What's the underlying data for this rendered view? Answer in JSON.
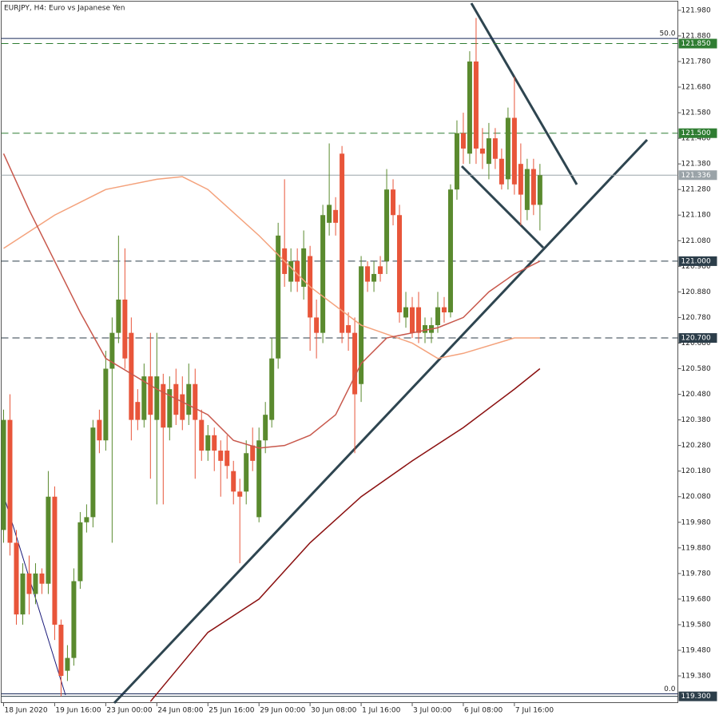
{
  "chart_data": {
    "type": "candlestick",
    "title": "EURJPY, H4:  Euro vs Japanese Yen",
    "ylim": [
      119.274,
      122.014
    ],
    "xlim": [
      -0.375,
      105.6
    ],
    "bull_color": "#5a8a2e",
    "bear_color": "#e8553a",
    "open": [
      119.95,
      120.38,
      119.9,
      119.62,
      119.78,
      119.7,
      119.78,
      119.74,
      120.08,
      119.58,
      119.4,
      119.45,
      119.75,
      119.98,
      120.0,
      120.38,
      120.3,
      120.58,
      120.72,
      120.85,
      120.72,
      120.45,
      120.38,
      120.55,
      120.38,
      120.52,
      120.35,
      120.52,
      120.48,
      120.4,
      120.52,
      120.38,
      120.26,
      120.32,
      120.26,
      120.26,
      120.18,
      120.1,
      120.1,
      120.28,
      120.0,
      120.3,
      120.38,
      120.62,
      121.05,
      120.92,
      121.0,
      120.9,
      121.02,
      120.78,
      120.72,
      121.15,
      121.2,
      121.42,
      120.75,
      120.72,
      120.52,
      120.98,
      120.92,
      120.98,
      121.0,
      121.28,
      121.18,
      120.78,
      120.82,
      120.82,
      120.72,
      120.72,
      120.75,
      120.82,
      120.8,
      121.28,
      121.5,
      121.42,
      121.78,
      121.44,
      121.38,
      121.48,
      121.4,
      121.32,
      121.56,
      121.38,
      121.2,
      121.36,
      121.22
    ],
    "high": [
      120.42,
      120.48,
      119.95,
      119.82,
      119.85,
      119.82,
      119.8,
      120.18,
      120.12,
      119.6,
      119.5,
      119.8,
      120.02,
      120.05,
      120.38,
      120.42,
      120.65,
      120.78,
      121.1,
      121.05,
      120.78,
      120.5,
      120.6,
      120.72,
      120.72,
      120.56,
      120.55,
      120.58,
      120.55,
      120.6,
      120.58,
      120.42,
      120.36,
      120.35,
      120.3,
      120.32,
      120.22,
      120.15,
      120.3,
      120.35,
      120.35,
      120.45,
      120.7,
      121.15,
      121.32,
      121.05,
      121.05,
      121.12,
      121.06,
      120.85,
      121.22,
      121.46,
      121.25,
      121.45,
      120.8,
      120.78,
      121.02,
      121.0,
      121.0,
      121.02,
      121.36,
      121.32,
      121.22,
      120.88,
      120.86,
      120.88,
      120.78,
      120.78,
      120.88,
      120.86,
      121.3,
      121.55,
      121.58,
      121.82,
      121.95,
      121.52,
      121.54,
      121.52,
      121.44,
      121.6,
      121.72,
      121.46,
      121.4,
      121.4,
      121.38
    ],
    "low": [
      119.9,
      119.85,
      119.58,
      119.58,
      119.62,
      119.66,
      119.7,
      119.7,
      119.52,
      119.3,
      119.36,
      119.42,
      119.72,
      119.94,
      119.96,
      120.25,
      120.26,
      119.9,
      120.68,
      120.58,
      120.3,
      120.34,
      120.35,
      120.15,
      120.05,
      120.05,
      120.3,
      120.36,
      120.34,
      120.36,
      120.15,
      120.22,
      120.22,
      120.18,
      120.08,
      120.15,
      120.05,
      119.82,
      120.05,
      120.18,
      119.98,
      120.25,
      120.35,
      120.58,
      120.9,
      120.88,
      120.88,
      120.85,
      120.65,
      120.62,
      120.68,
      121.1,
      121.1,
      120.68,
      120.65,
      120.25,
      120.45,
      120.88,
      120.88,
      120.92,
      120.95,
      121.14,
      120.76,
      120.74,
      120.7,
      120.68,
      120.68,
      120.68,
      120.72,
      120.76,
      120.78,
      121.24,
      121.38,
      121.38,
      121.38,
      121.36,
      121.32,
      121.36,
      121.28,
      121.28,
      121.26,
      121.14,
      121.16,
      121.18,
      121.12
    ],
    "close": [
      120.38,
      119.9,
      119.62,
      119.78,
      119.7,
      119.78,
      119.74,
      120.08,
      119.58,
      119.38,
      119.45,
      119.75,
      119.98,
      120.0,
      120.35,
      120.3,
      120.58,
      120.72,
      120.85,
      120.62,
      120.38,
      120.38,
      120.55,
      120.4,
      120.55,
      120.35,
      120.5,
      120.4,
      120.38,
      120.52,
      120.38,
      120.26,
      120.32,
      120.26,
      120.22,
      120.2,
      120.1,
      120.08,
      120.25,
      120.22,
      120.3,
      120.4,
      120.62,
      121.1,
      120.95,
      121.0,
      120.92,
      121.05,
      120.78,
      120.72,
      121.18,
      121.22,
      121.15,
      120.72,
      120.72,
      120.48,
      120.98,
      120.92,
      120.95,
      120.95,
      121.28,
      121.18,
      120.8,
      120.82,
      120.72,
      120.72,
      120.75,
      120.75,
      120.82,
      120.8,
      121.28,
      121.5,
      121.44,
      121.78,
      121.44,
      121.42,
      121.48,
      121.4,
      121.3,
      121.56,
      121.3,
      121.26,
      121.36,
      121.22,
      121.336
    ],
    "series": [
      {
        "color": "#f4a27c",
        "x": [
          0,
          8,
          16,
          24,
          28,
          32,
          40,
          48,
          56,
          64,
          68,
          72,
          80,
          84
        ],
        "values": [
          121.05,
          121.18,
          121.28,
          121.32,
          121.33,
          121.28,
          121.1,
          120.9,
          120.75,
          120.68,
          120.62,
          120.64,
          120.7,
          120.7
        ]
      },
      {
        "color": "#c8584c",
        "x": [
          0,
          4,
          8,
          12,
          16,
          24,
          32,
          36,
          40,
          44,
          48,
          52,
          56,
          60,
          64,
          68,
          72,
          76,
          80,
          84
        ],
        "values": [
          121.42,
          121.2,
          121.0,
          120.8,
          120.62,
          120.5,
          120.4,
          120.3,
          120.27,
          120.28,
          120.32,
          120.4,
          120.6,
          120.7,
          120.72,
          120.74,
          120.78,
          120.88,
          120.95,
          121.0
        ]
      },
      {
        "color": "#8b1010",
        "x": [
          23,
          32,
          40,
          48,
          56,
          64,
          72,
          80,
          84
        ],
        "values": [
          119.28,
          119.55,
          119.68,
          119.9,
          120.08,
          120.22,
          120.35,
          120.5,
          120.58
        ]
      }
    ],
    "yticks": [
      {
        "value": 121.98,
        "label": "121.980"
      },
      {
        "value": 121.88,
        "label": "121.880"
      },
      {
        "value": 121.78,
        "label": "121.780"
      },
      {
        "value": 121.68,
        "label": "121.680"
      },
      {
        "value": 121.58,
        "label": "121.580"
      },
      {
        "value": 121.48,
        "label": "121.480"
      },
      {
        "value": 121.38,
        "label": "121.380"
      },
      {
        "value": 121.28,
        "label": "121.280"
      },
      {
        "value": 121.18,
        "label": "121.180"
      },
      {
        "value": 121.08,
        "label": "121.080"
      },
      {
        "value": 120.98,
        "label": "120.980"
      },
      {
        "value": 120.88,
        "label": "120.880"
      },
      {
        "value": 120.78,
        "label": "120.780"
      },
      {
        "value": 120.68,
        "label": "120.680"
      },
      {
        "value": 120.58,
        "label": "120.580"
      },
      {
        "value": 120.48,
        "label": "120.480"
      },
      {
        "value": 120.38,
        "label": "120.380"
      },
      {
        "value": 120.28,
        "label": "120.280"
      },
      {
        "value": 120.18,
        "label": "120.180"
      },
      {
        "value": 120.08,
        "label": "120.080"
      },
      {
        "value": 119.98,
        "label": "119.980"
      },
      {
        "value": 119.88,
        "label": "119.880"
      },
      {
        "value": 119.78,
        "label": "119.780"
      },
      {
        "value": 119.68,
        "label": "119.680"
      },
      {
        "value": 119.58,
        "label": "119.580"
      },
      {
        "value": 119.48,
        "label": "119.480"
      },
      {
        "value": 119.38,
        "label": "119.380"
      }
    ],
    "xticks": [
      {
        "value": 0,
        "label": "18 Jun 2020"
      },
      {
        "value": 8,
        "label": "19 Jun 16:00"
      },
      {
        "value": 16,
        "label": "23 Jun 00:00"
      },
      {
        "value": 24,
        "label": "24 Jun 08:00"
      },
      {
        "value": 32,
        "label": "25 Jun 16:00"
      },
      {
        "value": 40,
        "label": "29 Jun 00:00"
      },
      {
        "value": 48,
        "label": "30 Jun 08:00"
      },
      {
        "value": 56,
        "label": "1 Jul 16:00"
      },
      {
        "value": 64,
        "label": "3 Jul 00:00"
      },
      {
        "value": 72,
        "label": "6 Jul 08:00"
      },
      {
        "value": 80,
        "label": "7 Jul 16:00"
      }
    ],
    "levels": [
      {
        "value": 121.85,
        "label": "121.850",
        "color": "#2f7d32",
        "dashed": true
      },
      {
        "value": 121.5,
        "label": "121.500",
        "color": "#2f7d32",
        "dashed": true
      },
      {
        "value": 121.0,
        "label": "121.000",
        "color": "#2c3e4a",
        "dashed": true
      },
      {
        "value": 120.7,
        "label": "120.700",
        "color": "#2c3e4a",
        "dashed": true
      },
      {
        "value": 119.3,
        "label": "119.300",
        "color": "#2c3e4a",
        "dashed": false
      },
      {
        "value": 121.336,
        "label": "121.336",
        "color": "#9aa3a8",
        "dashed": false
      }
    ],
    "fibo": [
      {
        "value": 121.87,
        "label": "50.0"
      },
      {
        "value": 119.31,
        "label": "0.0"
      }
    ]
  }
}
